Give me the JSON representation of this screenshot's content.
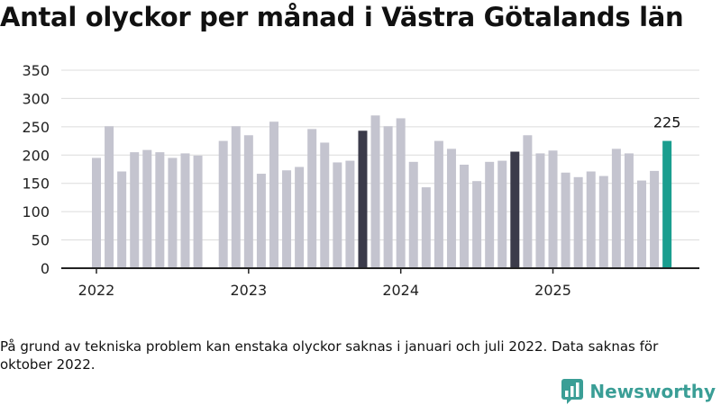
{
  "chart_data": {
    "type": "bar",
    "title": "Antal olyckor per månad i Västra Götalands län",
    "xlabel": "",
    "ylabel": "",
    "ylim": [
      0,
      350
    ],
    "yticks": [
      0,
      50,
      100,
      150,
      200,
      250,
      300,
      350
    ],
    "grid": true,
    "year_labels": [
      "2022",
      "2023",
      "2024",
      "2025"
    ],
    "series": [
      {
        "name": "Antal olyckor",
        "values": [
          195,
          251,
          171,
          205,
          209,
          205,
          195,
          203,
          199,
          null,
          225,
          251,
          235,
          167,
          259,
          173,
          179,
          246,
          222,
          187,
          190,
          243,
          270,
          251,
          265,
          188,
          143,
          225,
          211,
          183,
          154,
          188,
          190,
          206,
          235,
          203,
          208,
          169,
          161,
          171,
          163,
          211,
          203,
          155,
          172,
          225
        ]
      }
    ],
    "highlight_october": [
      21,
      33
    ],
    "latest_index": 45,
    "latest_label": "225",
    "colors": {
      "bar": "#c4c4cf",
      "october": "#3b3b4a",
      "latest": "#1a9e8f",
      "grid": "#dcdcdc",
      "axis": "#222222"
    }
  },
  "note": "På grund av tekniska problem kan enstaka olyckor saknas i januari och juli 2022. Data saknas för oktober 2022.",
  "brand": {
    "name": "Newsworthy",
    "icon": "bar-chart-speech-bubble-icon",
    "color": "#3a9e96"
  }
}
